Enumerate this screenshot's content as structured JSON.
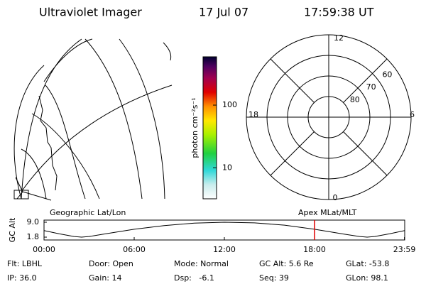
{
  "header": {
    "title": "Ultraviolet Imager",
    "date": "17 Jul 07",
    "time": "17:59:38 UT"
  },
  "colorbar": {
    "label": "photon cm⁻²s⁻¹",
    "lim": [
      3.2,
      590
    ],
    "ticks": [
      10,
      100
    ],
    "log": true
  },
  "polar": {
    "clock_labels": [
      "12",
      "6",
      "18",
      "0"
    ],
    "rings": [
      60,
      70,
      80
    ],
    "outer_lat": 50
  },
  "altitude_plot": {
    "left_title": "Geographic Lat/Lon",
    "right_title": "Apex MLat/MLT",
    "ylabel": "GC Alt",
    "ylim": [
      1.8,
      9.0
    ],
    "yticks": [
      {
        "value": 9.0,
        "label": "9.0"
      },
      {
        "value": 1.8,
        "label": "1.8"
      }
    ],
    "xlim": [
      0,
      24
    ],
    "xticks": [
      {
        "value": 0,
        "label": "00:00"
      },
      {
        "value": 6,
        "label": "06:00"
      },
      {
        "value": 12,
        "label": "12:00"
      },
      {
        "value": 18,
        "label": "18:00"
      },
      {
        "value": 23.98,
        "label": "23:59"
      }
    ],
    "x": [
      0,
      1,
      2,
      2.5,
      3,
      4,
      6,
      8,
      10,
      12,
      14,
      16,
      18,
      20,
      21,
      21.5,
      22,
      23,
      24
    ],
    "values": [
      5.0,
      3.4,
      2.1,
      1.8,
      2.1,
      3.3,
      5.6,
      7.4,
      8.6,
      9.0,
      8.7,
      7.6,
      5.6,
      3.2,
      2.1,
      1.8,
      2.1,
      3.4,
      5.0
    ],
    "marker": 18.0,
    "marker_color": "#e00000"
  },
  "info": [
    [
      "Flt: LBHL",
      "Door: Open",
      "Mode: Normal",
      "GC Alt: 5.6 Re",
      "GLat: -53.8"
    ],
    [
      "IP: 36.0",
      "Gain: 14",
      "Dsp:   -6.1",
      "Seq: 39",
      "GLon: 98.1"
    ]
  ]
}
